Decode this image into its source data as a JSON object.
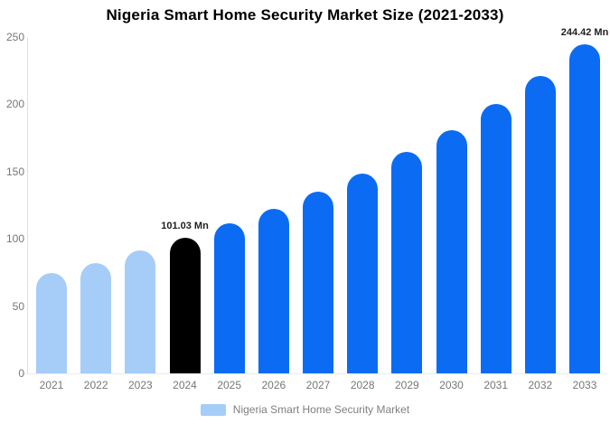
{
  "title": "Nigeria Smart Home Security Market Size (2021-2033)",
  "legend": {
    "label": "Nigeria Smart Home Security Market",
    "swatch_color": "#a5cdf8"
  },
  "colors": {
    "historical_bar": "#a5cdf8",
    "base_year_bar": "#000000",
    "forecast_bar": "#0b6cf3",
    "axis_text": "#777777",
    "annotation_text": "#1f1f1f",
    "axis_line": "#e0e0e0",
    "baseline": "#ececec",
    "background": "#ffffff"
  },
  "chart_data": {
    "type": "bar",
    "title": "Nigeria Smart Home Security Market Size (2021-2033)",
    "xlabel": "",
    "ylabel": "",
    "categories": [
      "2021",
      "2022",
      "2023",
      "2024",
      "2025",
      "2026",
      "2027",
      "2028",
      "2029",
      "2030",
      "2031",
      "2032",
      "2033"
    ],
    "values": [
      74.8,
      82.2,
      91.6,
      101.03,
      111.8,
      122.6,
      135.3,
      148.7,
      164.6,
      180.8,
      200.6,
      221.1,
      244.42
    ],
    "bar_colors": [
      "#a5cdf8",
      "#a5cdf8",
      "#a5cdf8",
      "#000000",
      "#0b6cf3",
      "#0b6cf3",
      "#0b6cf3",
      "#0b6cf3",
      "#0b6cf3",
      "#0b6cf3",
      "#0b6cf3",
      "#0b6cf3",
      "#0b6cf3"
    ],
    "annotations": [
      {
        "index": 3,
        "text": "101.03 Mn"
      },
      {
        "index": 12,
        "text": "244.42 Mn"
      }
    ],
    "ylim": [
      0,
      250
    ],
    "yticks": [
      0,
      50,
      100,
      150,
      200,
      250
    ],
    "grid": false,
    "legend_position": "bottom",
    "legend_entries": [
      "Nigeria Smart Home Security Market"
    ],
    "unit": "Mn"
  }
}
